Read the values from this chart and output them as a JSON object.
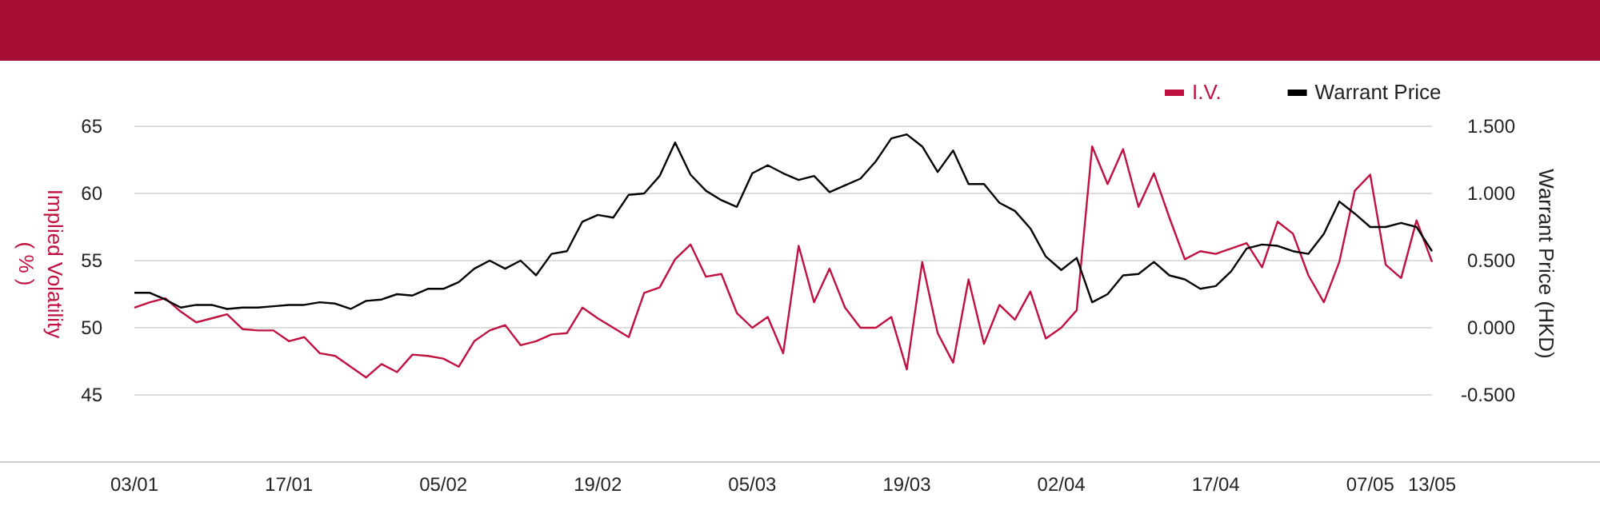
{
  "chart_data": {
    "type": "line",
    "ylabel": "Implied Volatility\n( % )",
    "y2label": "Warrant Price (HKD)",
    "categories": [
      "03/01",
      null,
      null,
      null,
      null,
      null,
      null,
      null,
      null,
      null,
      "17/01",
      null,
      null,
      null,
      null,
      null,
      null,
      null,
      null,
      null,
      "05/02",
      null,
      null,
      null,
      null,
      null,
      null,
      null,
      null,
      null,
      "19/02",
      null,
      null,
      null,
      null,
      null,
      null,
      null,
      null,
      null,
      "05/03",
      null,
      null,
      null,
      null,
      null,
      null,
      null,
      null,
      null,
      "19/03",
      null,
      null,
      null,
      null,
      null,
      null,
      null,
      null,
      null,
      "02/04",
      null,
      null,
      null,
      null,
      null,
      null,
      null,
      null,
      null,
      "17/04",
      null,
      null,
      null,
      null,
      null,
      null,
      null,
      null,
      null,
      "07/05",
      null,
      null,
      null,
      "13/05"
    ],
    "series": [
      {
        "name": "I.V.",
        "color": "#c0103f",
        "values": [
          51.5,
          51.9,
          52.2,
          51.2,
          50.4,
          50.7,
          51.0,
          49.9,
          49.8,
          49.8,
          49.0,
          49.3,
          48.1,
          47.9,
          47.1,
          46.3,
          47.3,
          46.7,
          48.0,
          47.9,
          47.7,
          47.1,
          49.0,
          49.8,
          50.2,
          48.7,
          49.0,
          49.5,
          49.6,
          51.5,
          50.7,
          50.0,
          49.3,
          52.6,
          53.0,
          55.1,
          56.2,
          53.8,
          54.0,
          51.1,
          50.0,
          50.8,
          48.1,
          56.1,
          51.9,
          54.4,
          51.5,
          50.0,
          50.0,
          50.8,
          46.9,
          54.9,
          49.6,
          47.4,
          53.6,
          48.8,
          51.7,
          50.6,
          52.7,
          49.2,
          50.0,
          51.3,
          63.5,
          60.7,
          63.3,
          59.0,
          61.5,
          58.2,
          55.1,
          55.7,
          55.5,
          55.9,
          56.3,
          54.5,
          57.9,
          57.0,
          53.9,
          51.9,
          54.9,
          60.2,
          61.4,
          54.7,
          53.7,
          58.0,
          54.9
        ]
      },
      {
        "name": "Warrant Price",
        "color": "#000000",
        "axis": "y2",
        "values": [
          0.26,
          0.26,
          0.21,
          0.15,
          0.17,
          0.17,
          0.14,
          0.15,
          0.15,
          0.16,
          0.17,
          0.17,
          0.19,
          0.18,
          0.14,
          0.2,
          0.21,
          0.25,
          0.24,
          0.29,
          0.29,
          0.34,
          0.44,
          0.5,
          0.44,
          0.5,
          0.39,
          0.55,
          0.57,
          0.79,
          0.84,
          0.82,
          0.99,
          1.0,
          1.13,
          1.38,
          1.14,
          1.02,
          0.95,
          0.9,
          1.15,
          1.21,
          1.15,
          1.1,
          1.13,
          1.01,
          1.06,
          1.11,
          1.24,
          1.41,
          1.44,
          1.35,
          1.16,
          1.32,
          1.07,
          1.07,
          0.93,
          0.87,
          0.74,
          0.53,
          0.43,
          0.52,
          0.19,
          0.25,
          0.39,
          0.4,
          0.49,
          0.39,
          0.36,
          0.29,
          0.31,
          0.42,
          0.59,
          0.62,
          0.61,
          0.57,
          0.55,
          0.7,
          0.94,
          0.85,
          0.75,
          0.75,
          0.78,
          0.75,
          0.57
        ]
      }
    ],
    "ylim": [
      40,
      65
    ],
    "yticks": [
      45,
      50,
      55,
      60,
      65
    ],
    "y2lim": [
      -1,
      1.5
    ],
    "y2ticks": [
      {
        "value": -0.5,
        "label": "-0.500"
      },
      {
        "value": 0,
        "label": "0.000"
      },
      {
        "value": 0.5,
        "label": "0.500"
      },
      {
        "value": 1,
        "label": "1.000"
      },
      {
        "value": 1.5,
        "label": "1.500"
      }
    ],
    "grid": "y",
    "legend": "top right",
    "marker": "none",
    "line_style": "solid"
  }
}
